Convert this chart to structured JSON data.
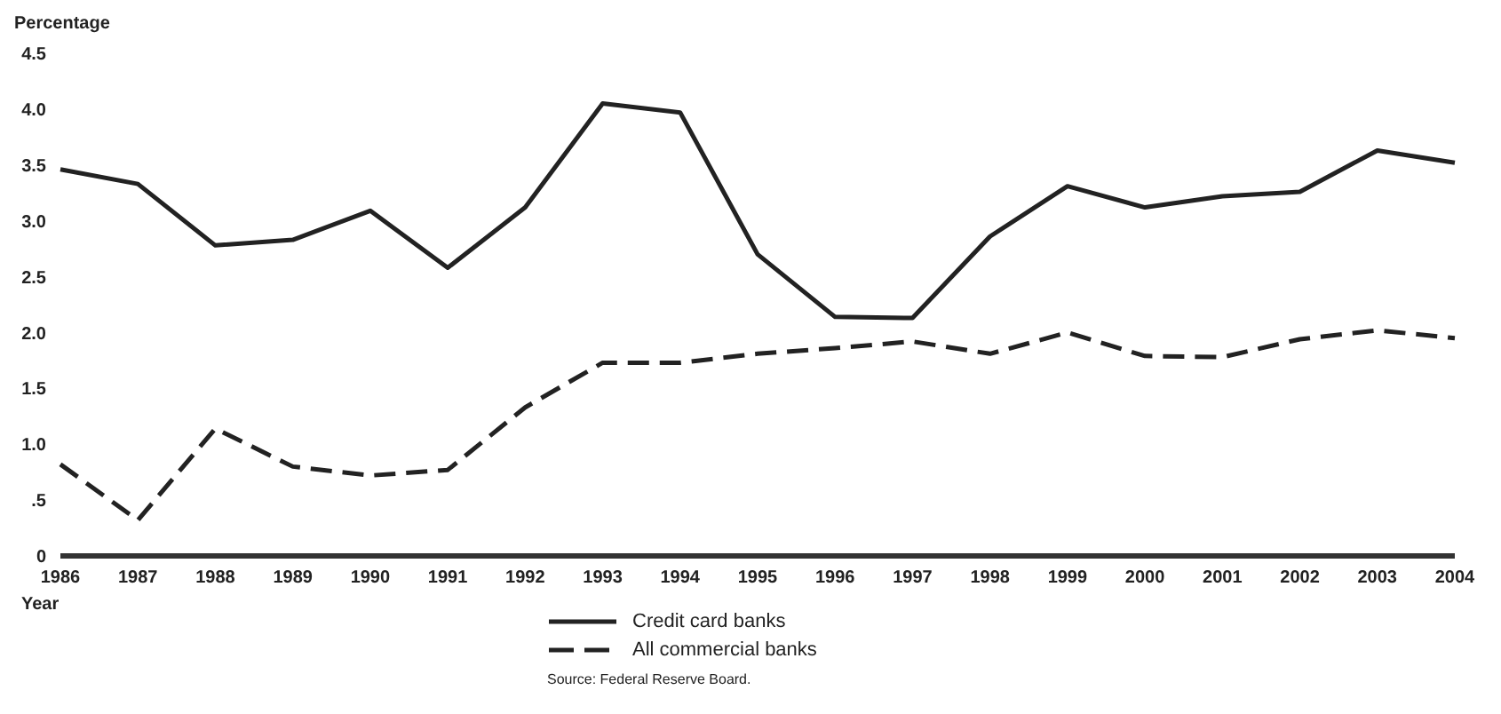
{
  "chart_data": {
    "type": "line",
    "xlabel": "Year",
    "ylabel": "Percentage",
    "categories": [
      "1986",
      "1987",
      "1988",
      "1989",
      "1990",
      "1991",
      "1992",
      "1993",
      "1994",
      "1995",
      "1996",
      "1997",
      "1998",
      "1999",
      "2000",
      "2001",
      "2002",
      "2003",
      "2004"
    ],
    "series": [
      {
        "name": "Credit card banks",
        "color": "#222222",
        "line_style": "solid",
        "values": [
          3.46,
          3.33,
          2.78,
          2.83,
          3.09,
          2.58,
          3.12,
          4.05,
          3.97,
          2.7,
          2.14,
          2.13,
          2.86,
          3.31,
          3.12,
          3.22,
          3.26,
          3.63,
          3.52
        ]
      },
      {
        "name": "All commercial banks",
        "color": "#222222",
        "line_style": "dashed",
        "values": [
          0.82,
          0.32,
          1.14,
          0.8,
          0.72,
          0.77,
          1.33,
          1.73,
          1.73,
          1.81,
          1.86,
          1.92,
          1.81,
          2.0,
          1.79,
          1.78,
          1.94,
          2.02,
          1.95
        ]
      }
    ],
    "ylim": [
      0,
      4.5
    ],
    "yticks": [
      {
        "value": 0,
        "label": "0"
      },
      {
        "value": 0.5,
        "label": ".5"
      },
      {
        "value": 1,
        "label": "1.0"
      },
      {
        "value": 1.5,
        "label": "1.5"
      },
      {
        "value": 2,
        "label": "2.0"
      },
      {
        "value": 2.5,
        "label": "2.5"
      },
      {
        "value": 3,
        "label": "3.0"
      },
      {
        "value": 3.5,
        "label": "3.5"
      },
      {
        "value": 4,
        "label": "4.0"
      },
      {
        "value": 4.5,
        "label": "4.5"
      }
    ],
    "marker": "none",
    "legend": "bottom",
    "annotations": [
      "Source: Federal Reserve Board."
    ]
  }
}
